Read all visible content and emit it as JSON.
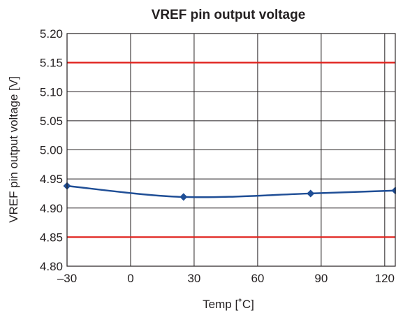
{
  "chart_data": {
    "type": "line",
    "title": "VREF pin output voltage",
    "xlabel": "Temp [˚C]",
    "ylabel": "VREF pin output voltage [V]",
    "xlim": [
      -30,
      125
    ],
    "ylim": [
      4.8,
      5.2
    ],
    "x_ticks": [
      -30,
      0,
      30,
      60,
      90,
      120
    ],
    "x_tick_labels": [
      "–30",
      "0",
      "30",
      "60",
      "90",
      "120"
    ],
    "y_ticks": [
      4.8,
      4.85,
      4.9,
      4.95,
      5.0,
      5.05,
      5.1,
      5.15,
      5.2
    ],
    "y_tick_labels": [
      "4.80",
      "4.85",
      "4.90",
      "4.95",
      "5.00",
      "5.05",
      "5.10",
      "5.15",
      "5.20"
    ],
    "grid": true,
    "series": [
      {
        "x": [
          -30,
          25,
          85,
          125
        ],
        "y": [
          4.938,
          4.919,
          4.925,
          4.93
        ],
        "color": "#1f4e96",
        "marker": "diamond",
        "smooth": true
      }
    ],
    "limit_lines": [
      {
        "y": 5.15,
        "color": "#e0201b"
      },
      {
        "y": 4.85,
        "color": "#e0201b"
      }
    ]
  }
}
